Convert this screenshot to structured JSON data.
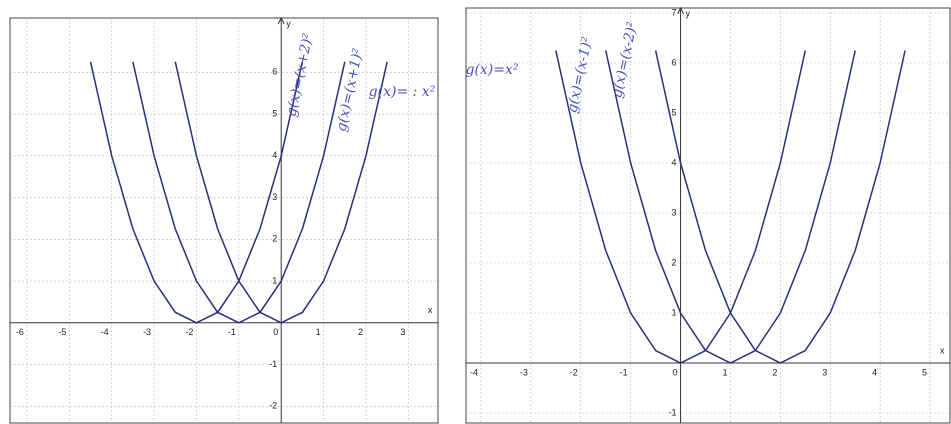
{
  "chart_data": [
    {
      "type": "line",
      "x_label": "x",
      "y_label": "y",
      "x": [
        -5,
        -4.5,
        -4,
        -3.5,
        -3,
        -2.5,
        -2,
        -1.5,
        -1,
        -0.5,
        0,
        0.5,
        1,
        1.5,
        2,
        2.5,
        3
      ],
      "series": [
        {
          "name": "g(x)=(x+2)²",
          "color": "#2b2f7a",
          "values": [
            null,
            6.25,
            4,
            2.25,
            1,
            0.25,
            0,
            0.25,
            1,
            2.25,
            4,
            6.25,
            null,
            null,
            null,
            null,
            null
          ]
        },
        {
          "name": "g(x)=(x+1)²",
          "color": "#2b2f7a",
          "values": [
            null,
            null,
            null,
            6.25,
            4,
            2.25,
            1,
            0.25,
            0,
            0.25,
            1,
            2.25,
            4,
            6.25,
            null,
            null,
            null
          ]
        },
        {
          "name": "g(x)= : x²",
          "color": "#2b2f7a",
          "values": [
            null,
            null,
            null,
            null,
            null,
            6.25,
            4,
            2.25,
            1,
            0.25,
            0,
            0.25,
            1,
            2.25,
            4,
            6.25,
            null
          ]
        }
      ],
      "xlim": [
        -6.4,
        3.7
      ],
      "ylim": [
        -2.4,
        7.3
      ],
      "xticks": [
        -6,
        -5,
        -4,
        -3,
        -2,
        -1,
        0,
        1,
        2,
        3
      ],
      "yticks": [
        -2,
        -1,
        1,
        2,
        3,
        4,
        5,
        6
      ],
      "grid": true
    },
    {
      "type": "line",
      "x_label": "x",
      "y_label": "y",
      "x": [
        -3,
        -2.5,
        -2,
        -1.5,
        -1,
        -0.5,
        0,
        0.5,
        1,
        1.5,
        2,
        2.5,
        3,
        3.5,
        4,
        4.5,
        5
      ],
      "series": [
        {
          "name": "g(x)=x²",
          "color": "#2b2f7a",
          "values": [
            null,
            6.25,
            4,
            2.25,
            1,
            0.25,
            0,
            0.25,
            1,
            2.25,
            4,
            6.25,
            null,
            null,
            null,
            null,
            null
          ]
        },
        {
          "name": "g(x)=(x-1)²",
          "color": "#2b2f7a",
          "values": [
            null,
            null,
            null,
            6.25,
            4,
            2.25,
            1,
            0.25,
            0,
            0.25,
            1,
            2.25,
            4,
            6.25,
            null,
            null,
            null
          ]
        },
        {
          "name": "g(x)=(x-2)²",
          "color": "#2b2f7a",
          "values": [
            null,
            null,
            null,
            null,
            null,
            6.25,
            4,
            2.25,
            1,
            0.25,
            0,
            0.25,
            1,
            2.25,
            4,
            6.25,
            null
          ]
        }
      ],
      "xlim": [
        -4.3,
        5.4
      ],
      "ylim": [
        -1.2,
        7.1
      ],
      "xticks": [
        -4,
        -3,
        -2,
        -1,
        0,
        1,
        2,
        3,
        4,
        5
      ],
      "yticks": [
        -1,
        1,
        2,
        3,
        4,
        5,
        6,
        7
      ],
      "grid": true
    }
  ]
}
